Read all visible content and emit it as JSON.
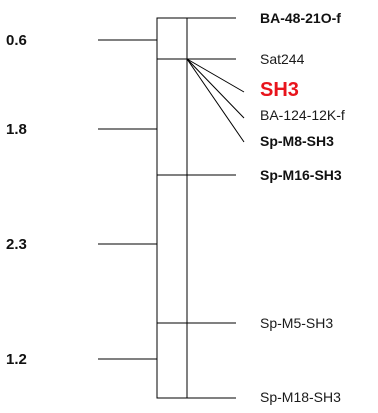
{
  "distances": [
    "0.6",
    "1.8",
    "2.3",
    "1.2"
  ],
  "markers": [
    {
      "name": "BA-48-21O-f",
      "style": "bold"
    },
    {
      "name": "Sat244",
      "style": "normal"
    },
    {
      "name": "SH3",
      "style": "highlight"
    },
    {
      "name": "BA-124-12K-f",
      "style": "normal"
    },
    {
      "name": "Sp-M8-SH3",
      "style": "bold"
    },
    {
      "name": "Sp-M16-SH3",
      "style": "bold"
    },
    {
      "name": "Sp-M5-SH3",
      "style": "normal"
    },
    {
      "name": "Sp-M18-SH3",
      "style": "normal"
    }
  ],
  "colors": {
    "line": "#000000",
    "highlight": "#e8141c",
    "text": "#1a1a1a"
  }
}
